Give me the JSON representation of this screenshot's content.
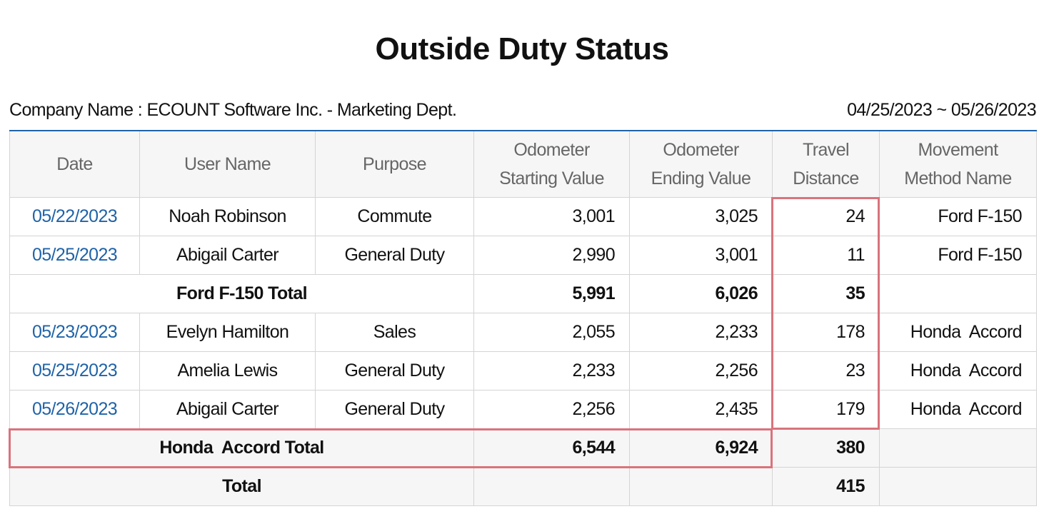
{
  "title": "Outside Duty Status",
  "company": "Company Name : ECOUNT Software Inc. - Marketing Dept.",
  "period": "04/25/2023 ~ 05/26/2023",
  "headers": {
    "date": "Date",
    "user": "User Name",
    "purpose": "Purpose",
    "odo_start_1": "Odometer",
    "odo_start_2": "Starting Value",
    "odo_end_1": "Odometer",
    "odo_end_2": "Ending Value",
    "travel_1": "Travel",
    "travel_2": "Distance",
    "method_1": "Movement",
    "method_2": "Method Name"
  },
  "rows": [
    {
      "date": "05/22/2023",
      "user": "Noah Robinson",
      "purpose": "Commute",
      "start": "3,001",
      "end": "3,025",
      "distance": "24",
      "method": "Ford F-150"
    },
    {
      "date": "05/25/2023",
      "user": "Abigail Carter",
      "purpose": "General Duty",
      "start": "2,990",
      "end": "3,001",
      "distance": "11",
      "method": "Ford F-150"
    },
    {
      "date": "05/23/2023",
      "user": "Evelyn Hamilton",
      "purpose": "Sales",
      "start": "2,055",
      "end": "2,233",
      "distance": "178",
      "method": "Honda  Accord"
    },
    {
      "date": "05/25/2023",
      "user": "Amelia Lewis",
      "purpose": "General Duty",
      "start": "2,233",
      "end": "2,256",
      "distance": "23",
      "method": "Honda  Accord"
    },
    {
      "date": "05/26/2023",
      "user": "Abigail Carter",
      "purpose": "General Duty",
      "start": "2,256",
      "end": "2,435",
      "distance": "179",
      "method": "Honda  Accord"
    }
  ],
  "subtotals": [
    {
      "label": "Ford F-150 Total",
      "start": "5,991",
      "end": "6,026",
      "distance": "35"
    },
    {
      "label": "Honda  Accord Total",
      "start": "6,544",
      "end": "6,924",
      "distance": "380"
    }
  ],
  "total": {
    "label": "Total",
    "distance": "415"
  },
  "highlight_color": "#d9737c",
  "link_color": "#1f63a8"
}
